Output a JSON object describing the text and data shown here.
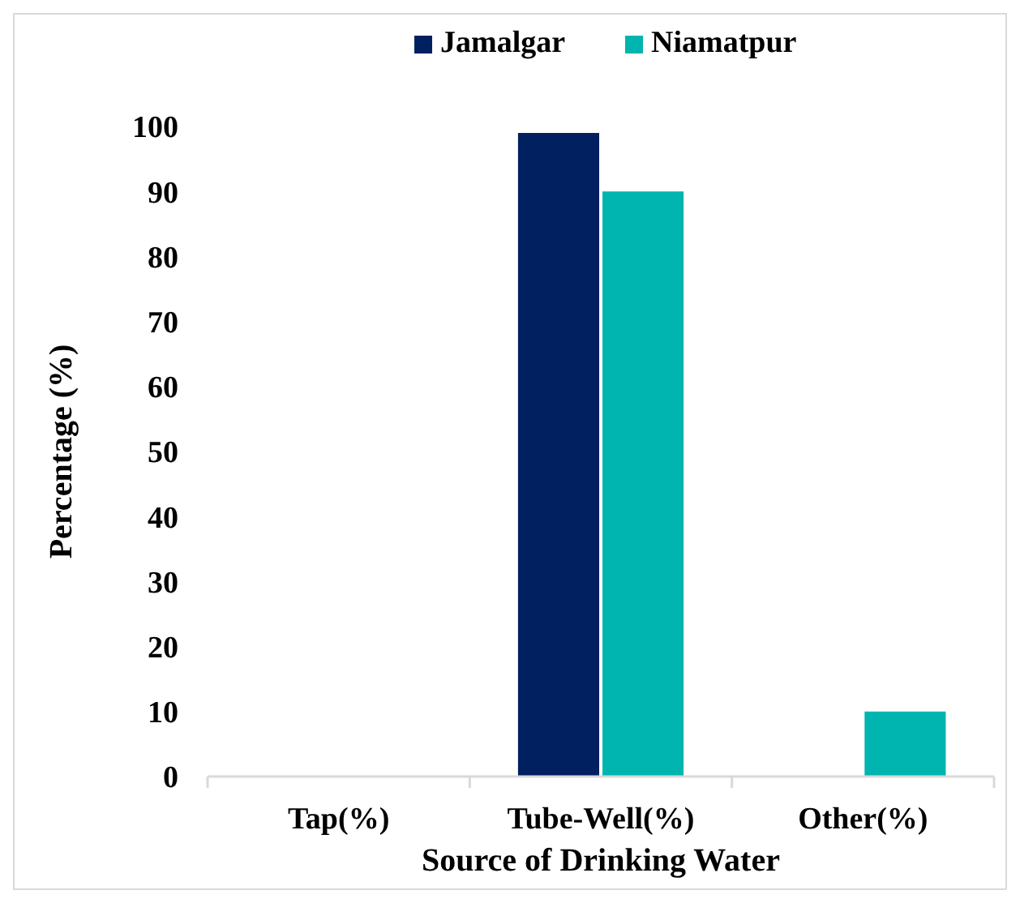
{
  "chart_data": {
    "type": "bar",
    "xlabel": "Source of Drinking Water",
    "ylabel": "Percentage (%)",
    "categories": [
      "Tap(%)",
      "Tube-Well(%)",
      "Other(%)"
    ],
    "series": [
      {
        "name": "Jamalgar",
        "color": "#002060",
        "values": [
          0,
          99,
          0
        ]
      },
      {
        "name": "Niamatpur",
        "color": "#00b4b0",
        "values": [
          0,
          90,
          10
        ]
      }
    ],
    "ylim": [
      0,
      100
    ],
    "yticks": [
      0,
      10,
      20,
      30,
      40,
      50,
      60,
      70,
      80,
      90,
      100
    ],
    "legend": "top",
    "grid": false
  }
}
